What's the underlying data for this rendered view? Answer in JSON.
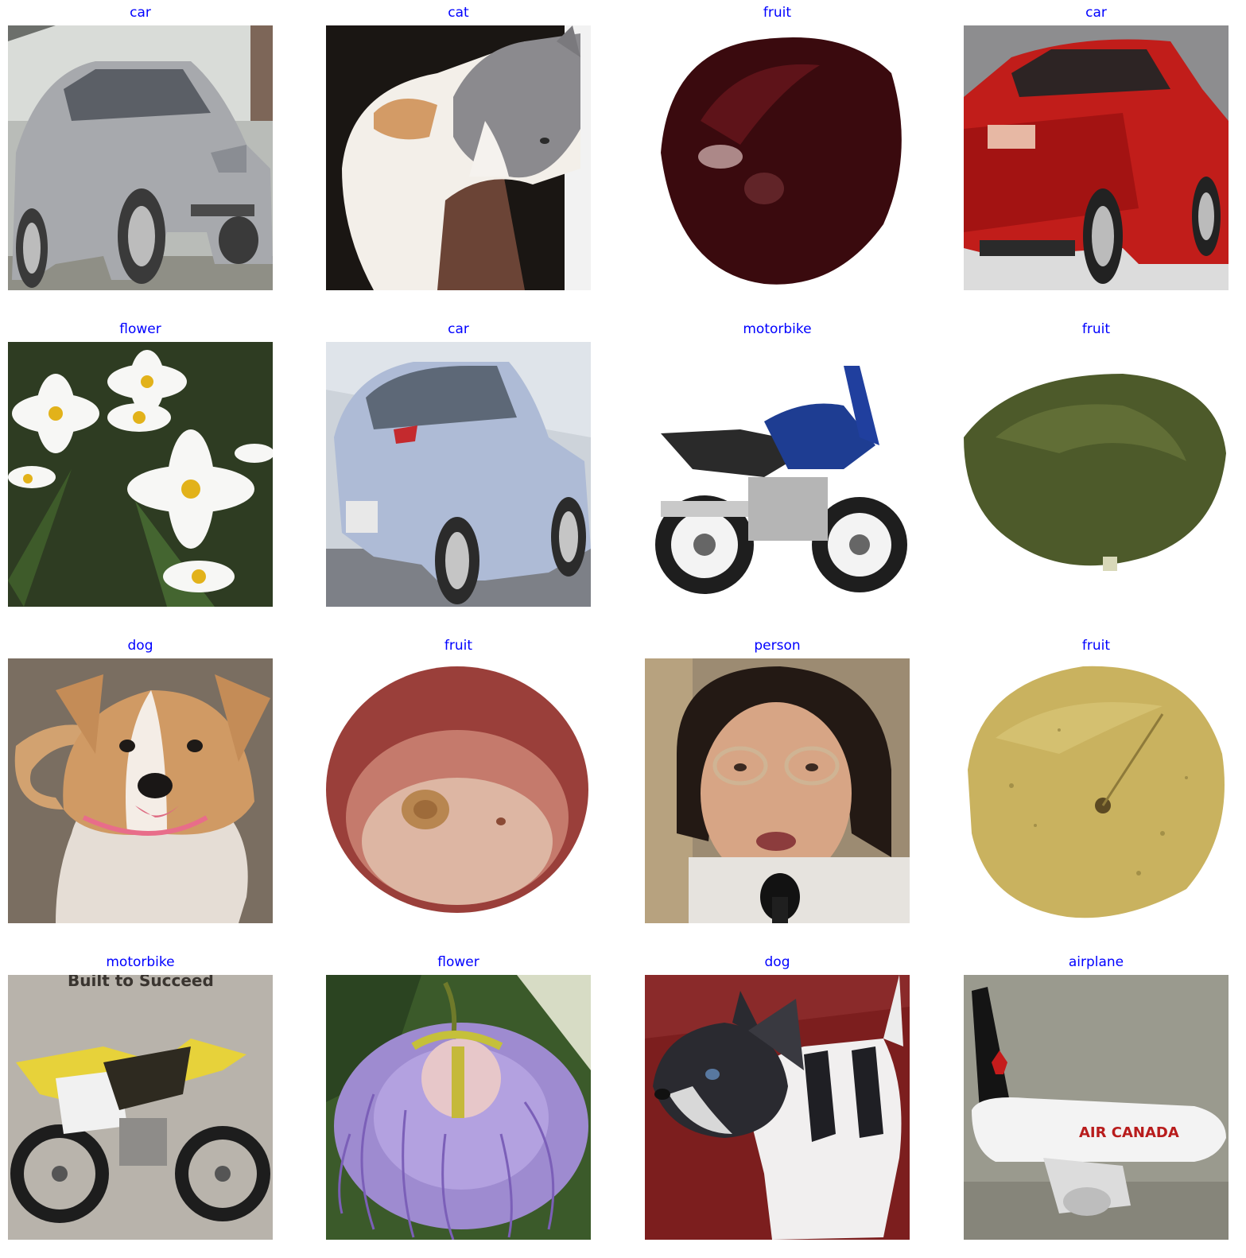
{
  "figure": {
    "images": [
      {
        "label": "car",
        "subject": "silver sedan"
      },
      {
        "label": "cat",
        "subject": "calico cat held in hands"
      },
      {
        "label": "fruit",
        "subject": "dark red cherry"
      },
      {
        "label": "car",
        "subject": "red sedan rear view"
      },
      {
        "label": "flower",
        "subject": "white daisies"
      },
      {
        "label": "car",
        "subject": "light blue sedan rear view"
      },
      {
        "label": "motorbike",
        "subject": "blue sport motorcycle"
      },
      {
        "label": "fruit",
        "subject": "green avocado"
      },
      {
        "label": "dog",
        "subject": "tan and white puppy"
      },
      {
        "label": "fruit",
        "subject": "red grape"
      },
      {
        "label": "person",
        "subject": "woman with glasses at microphone"
      },
      {
        "label": "fruit",
        "subject": "yellow apple"
      },
      {
        "label": "motorbike",
        "subject": "yellow dirt bike",
        "caption_text": "Built to Succeed"
      },
      {
        "label": "flower",
        "subject": "purple passion flower"
      },
      {
        "label": "dog",
        "subject": "black and white puppy"
      },
      {
        "label": "airplane",
        "subject": "white passenger jet",
        "caption_text": "AIR CANADA"
      }
    ],
    "label_color": "#0000ff"
  }
}
